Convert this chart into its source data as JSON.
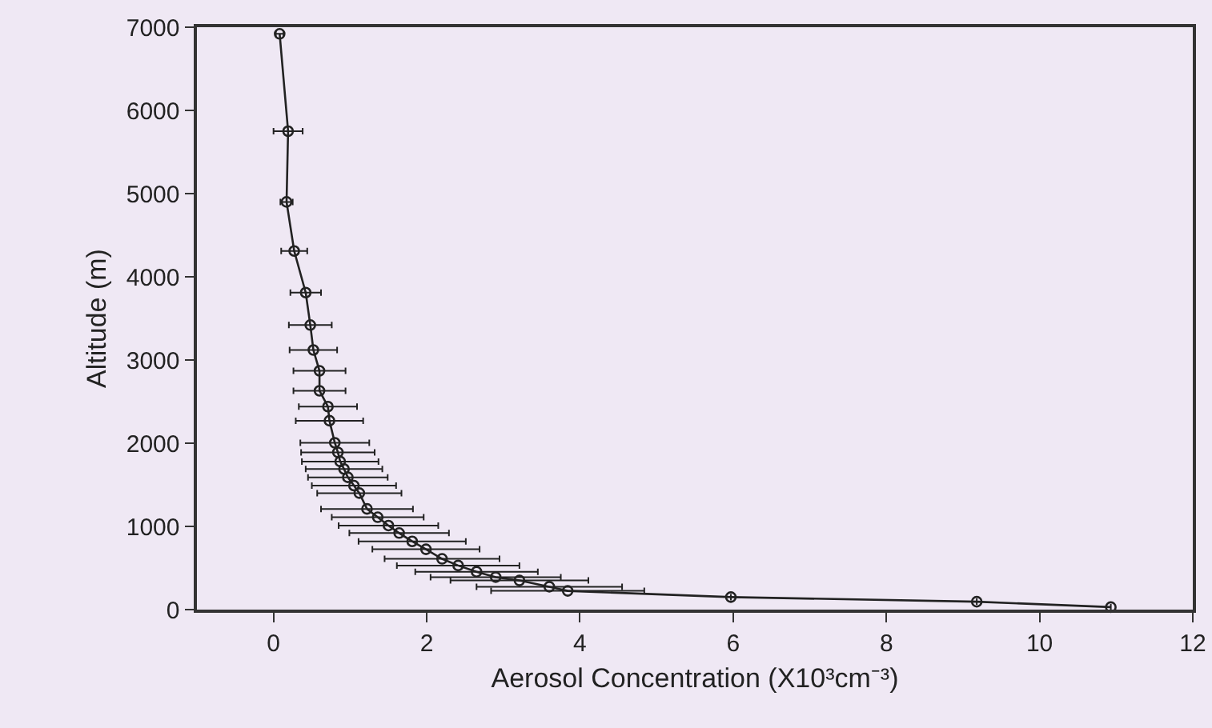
{
  "chart_data": {
    "type": "line",
    "xlabel": "Aerosol Concentration (X10³cm⁻³)",
    "ylabel": "Altitude (m)",
    "xlim": [
      -1,
      12
    ],
    "xticks": [
      0,
      2,
      4,
      6,
      8,
      10,
      12
    ],
    "ylim": [
      0,
      7000
    ],
    "yticks": [
      0,
      1000,
      2000,
      3000,
      4000,
      5000,
      6000,
      7000
    ],
    "grid": false,
    "marker": "circle",
    "line_style": "solid",
    "series": [
      {
        "color": "#222222",
        "x": [
          0.08,
          0.19,
          0.17,
          0.27,
          0.42,
          0.48,
          0.52,
          0.6,
          0.6,
          0.71,
          0.73,
          0.8,
          0.84,
          0.87,
          0.92,
          0.97,
          1.05,
          1.12,
          1.22,
          1.36,
          1.5,
          1.64,
          1.81,
          1.99,
          2.2,
          2.41,
          2.65,
          2.9,
          3.21,
          3.6,
          3.84,
          5.97,
          9.18,
          10.93
        ],
        "values": [
          6920,
          5750,
          4900,
          4310,
          3810,
          3420,
          3120,
          2870,
          2630,
          2440,
          2270,
          2005,
          1890,
          1780,
          1690,
          1590,
          1490,
          1400,
          1210,
          1110,
          1010,
          920,
          820,
          725,
          610,
          530,
          455,
          390,
          350,
          275,
          225,
          150,
          95,
          30
        ],
        "xerrors": [
          0.05,
          0.19,
          0.08,
          0.17,
          0.2,
          0.28,
          0.31,
          0.34,
          0.34,
          0.38,
          0.44,
          0.45,
          0.48,
          0.5,
          0.5,
          0.52,
          0.55,
          0.55,
          0.6,
          0.6,
          0.65,
          0.65,
          0.7,
          0.7,
          0.75,
          0.8,
          0.8,
          0.85,
          0.9,
          0.95,
          1.0,
          null,
          null,
          null
        ]
      }
    ]
  }
}
